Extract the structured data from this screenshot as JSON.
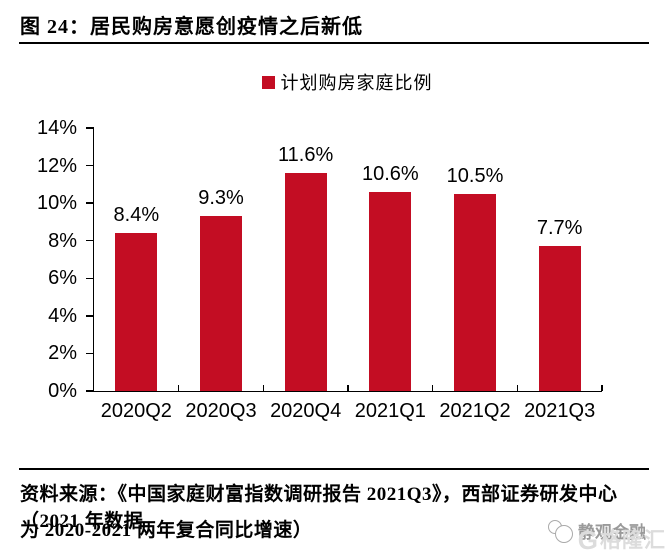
{
  "figure": {
    "title": "图 24：居民购房意愿创疫情之后新低",
    "source_line1": "资料来源：《中国家庭财富指数调研报告 2021Q3》，西部证券研发中心（2021 年数据",
    "source_line2": "为 2020-2021 两年复合同比增速）"
  },
  "watermark": {
    "brand": "静观金融",
    "platform_initial": "G",
    "platform": "格隆汇"
  },
  "chart_data": {
    "type": "bar",
    "title": "",
    "legend": [
      "计划购房家庭比例"
    ],
    "legend_position": "top-center",
    "categories": [
      "2020Q2",
      "2020Q3",
      "2020Q4",
      "2021Q1",
      "2021Q2",
      "2021Q3"
    ],
    "values": [
      8.4,
      9.3,
      11.6,
      10.6,
      10.5,
      7.7
    ],
    "data_labels": [
      "8.4%",
      "9.3%",
      "11.6%",
      "10.6%",
      "10.5%",
      "7.7%"
    ],
    "xlabel": "",
    "ylabel": "",
    "ylim": [
      0,
      14
    ],
    "ytick_step": 2,
    "ytick_labels": [
      "0%",
      "2%",
      "4%",
      "6%",
      "8%",
      "10%",
      "12%",
      "14%"
    ],
    "grid": false,
    "bar_color": "#c30d23",
    "axis_color": "#000000"
  }
}
